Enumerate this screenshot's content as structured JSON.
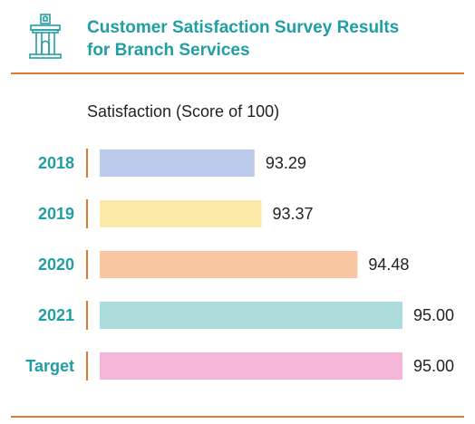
{
  "header": {
    "title_line1": "Customer Satisfaction Survey Results",
    "title_line2": "for Branch Services",
    "icon": "bank-building-icon"
  },
  "colors": {
    "accent": "#1f9ea3",
    "rule": "#e07a2e"
  },
  "chart_data": {
    "type": "bar",
    "orientation": "horizontal",
    "subtitle": "Satisfaction (Score of 100)",
    "categories": [
      "2018",
      "2019",
      "2020",
      "2021",
      "Target"
    ],
    "values": [
      93.29,
      93.37,
      94.48,
      95.0,
      95.0
    ],
    "value_labels": [
      "93.29",
      "93.37",
      "94.48",
      "95.00",
      "95.00"
    ],
    "bar_colors": [
      "#bccbec",
      "#fdeaa8",
      "#f8c6a0",
      "#acdcdc",
      "#f5b5d6"
    ],
    "xlim": [
      91.5,
      95.0
    ],
    "grid": false,
    "legend": "none"
  }
}
